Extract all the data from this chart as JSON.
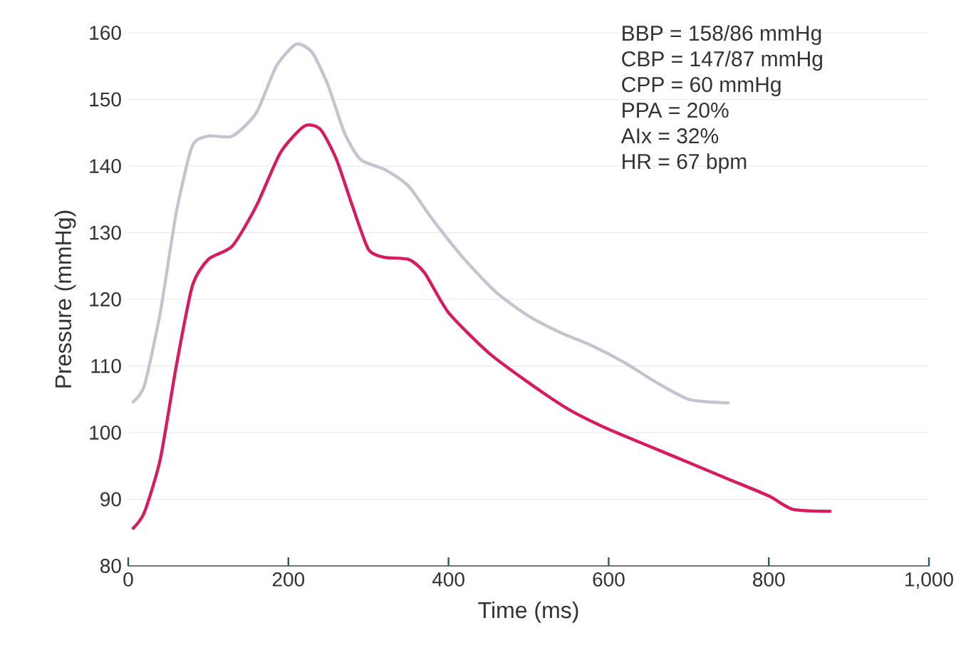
{
  "chart_data": {
    "type": "line",
    "xlabel": "Time (ms)",
    "ylabel": "Pressure (mmHg)",
    "xlim": [
      0,
      1000
    ],
    "ylim": [
      80,
      160
    ],
    "xticks": [
      0,
      200,
      400,
      600,
      800,
      {
        "value": 1000,
        "label": "1,000"
      }
    ],
    "yticks": [
      80,
      90,
      100,
      110,
      120,
      130,
      140,
      150,
      160
    ],
    "grid": "y",
    "marker": "none",
    "line_style": "solid",
    "annotations": [
      "BBP = 158/86 mmHg",
      "CBP = 147/87 mmHg",
      "CPP = 60 mmHg",
      "PPA = 20%",
      "AIx = 32%",
      "HR = 67 bpm"
    ],
    "series": [
      {
        "color": "#c2c5d0",
        "x": [
          5,
          20,
          40,
          60,
          80,
          100,
          130,
          160,
          185,
          210,
          230,
          250,
          270,
          290,
          320,
          350,
          380,
          420,
          460,
          500,
          540,
          580,
          620,
          660,
          700,
          740,
          751
        ],
        "values": [
          104.5,
          107,
          118,
          133,
          143,
          144.5,
          144.5,
          148,
          155,
          158.3,
          157,
          152,
          145,
          141,
          139.5,
          137,
          132,
          126,
          121,
          117.5,
          115,
          113,
          110.5,
          107.5,
          105,
          104.5,
          104.5
        ]
      },
      {
        "color": "#d81b5e",
        "x": [
          5,
          20,
          40,
          60,
          80,
          100,
          130,
          160,
          190,
          220,
          240,
          260,
          280,
          300,
          320,
          350,
          370,
          400,
          450,
          500,
          550,
          600,
          650,
          700,
          750,
          800,
          830,
          878
        ],
        "values": [
          85.5,
          88,
          96,
          110,
          122,
          126,
          128,
          134,
          142,
          146,
          145.5,
          141,
          134,
          127.5,
          126.3,
          126,
          124,
          118,
          112,
          107.5,
          103.5,
          100.5,
          98,
          95.5,
          93,
          90.5,
          88.5,
          88.2
        ]
      }
    ]
  }
}
